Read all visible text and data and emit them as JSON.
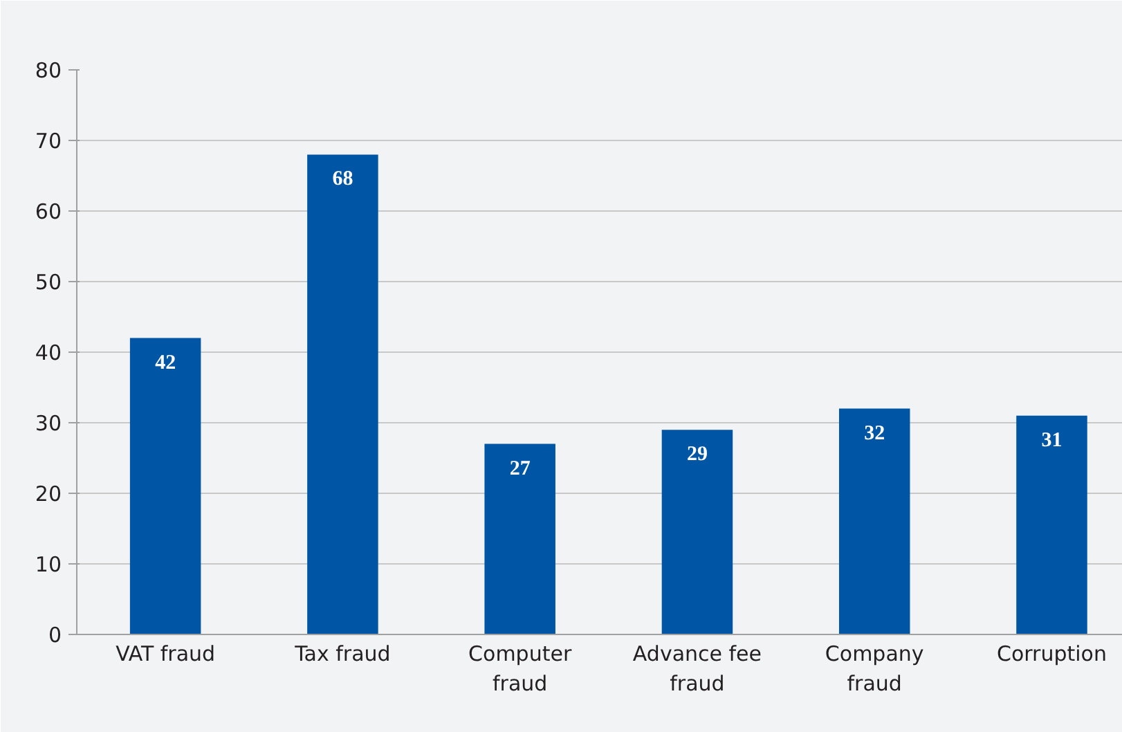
{
  "chart_data": {
    "type": "bar",
    "categories": [
      "VAT fraud",
      "Tax fraud",
      "Computer fraud",
      "Advance fee fraud",
      "Company fraud",
      "Corruption"
    ],
    "values": [
      42,
      68,
      27,
      29,
      32,
      31
    ],
    "color": "#0055a5",
    "ylim": [
      0,
      80
    ],
    "yticks": [
      0,
      10,
      20,
      30,
      40,
      50,
      60,
      70,
      80
    ],
    "grid": "y",
    "data_labels": true
  }
}
